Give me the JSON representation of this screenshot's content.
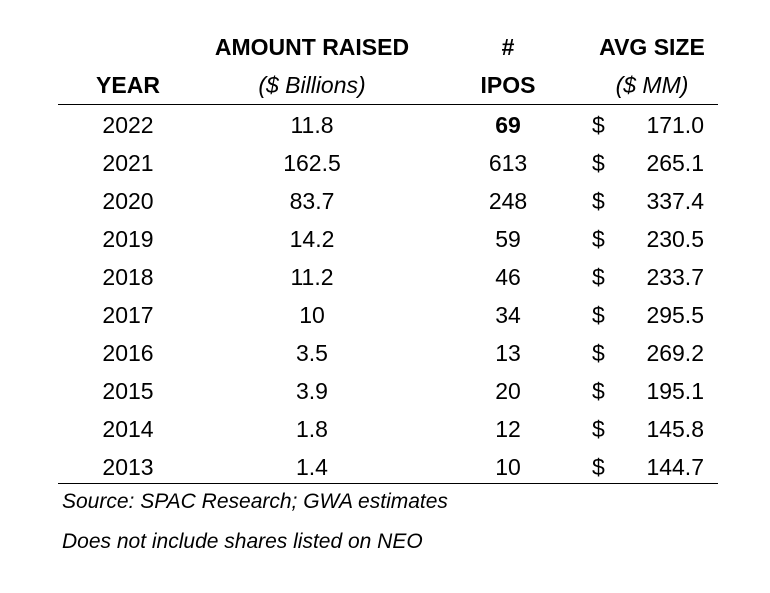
{
  "headers": {
    "year": "YEAR",
    "amount_line1": "AMOUNT RAISED",
    "amount_line2": "($ Billions)",
    "ipos_line1": "#",
    "ipos_line2": "IPOS",
    "avg_line1": "AVG SIZE",
    "avg_line2": "($ MM)"
  },
  "currency_symbol": "$",
  "rows": [
    {
      "year": "2022",
      "amount": "11.8",
      "ipos": "69",
      "avg": "171.0",
      "ipos_bold": true
    },
    {
      "year": "2021",
      "amount": "162.5",
      "ipos": "613",
      "avg": "265.1"
    },
    {
      "year": "2020",
      "amount": "83.7",
      "ipos": "248",
      "avg": "337.4"
    },
    {
      "year": "2019",
      "amount": "14.2",
      "ipos": "59",
      "avg": "230.5"
    },
    {
      "year": "2018",
      "amount": "11.2",
      "ipos": "46",
      "avg": "233.7"
    },
    {
      "year": "2017",
      "amount": "10",
      "ipos": "34",
      "avg": "295.5"
    },
    {
      "year": "2016",
      "amount": "3.5",
      "ipos": "13",
      "avg": "269.2"
    },
    {
      "year": "2015",
      "amount": "3.9",
      "ipos": "20",
      "avg": "195.1"
    },
    {
      "year": "2014",
      "amount": "1.8",
      "ipos": "12",
      "avg": "145.8"
    },
    {
      "year": "2013",
      "amount": "1.4",
      "ipos": "10",
      "avg": "144.7"
    }
  ],
  "notes": {
    "source": "Source: SPAC Research; GWA estimates",
    "disclaimer": "Does not include shares listed on NEO"
  },
  "chart_data": {
    "type": "table",
    "columns": [
      "YEAR",
      "AMOUNT RAISED ($ Billions)",
      "# IPOS",
      "AVG SIZE ($ MM)"
    ],
    "rows": [
      [
        2022,
        11.8,
        69,
        171.0
      ],
      [
        2021,
        162.5,
        613,
        265.1
      ],
      [
        2020,
        83.7,
        248,
        337.4
      ],
      [
        2019,
        14.2,
        59,
        230.5
      ],
      [
        2018,
        11.2,
        46,
        233.7
      ],
      [
        2017,
        10,
        34,
        295.5
      ],
      [
        2016,
        3.5,
        13,
        269.2
      ],
      [
        2015,
        3.9,
        20,
        195.1
      ],
      [
        2014,
        1.8,
        12,
        145.8
      ],
      [
        2013,
        1.4,
        10,
        144.7
      ]
    ]
  }
}
